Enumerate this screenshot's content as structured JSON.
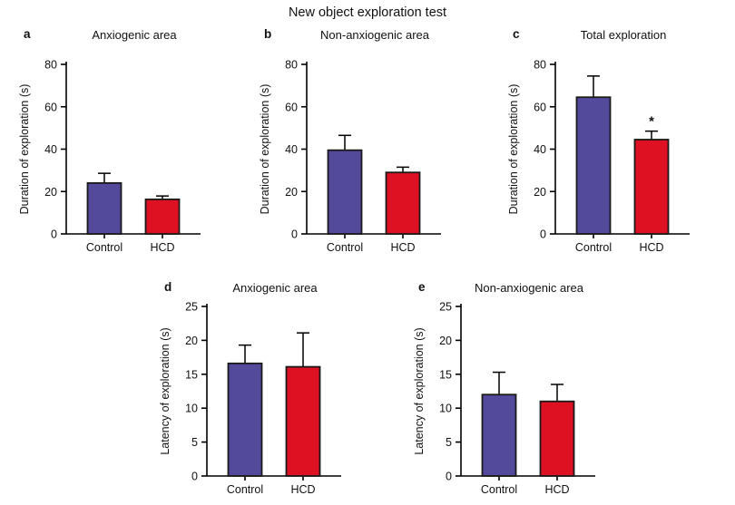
{
  "figure_title": "New object exploration test",
  "palette": {
    "control": "#544a9c",
    "hcd": "#de1123",
    "axis": "#000000",
    "text": "#111111",
    "bar_border": "#1a1a1a"
  },
  "chart_data": [
    {
      "type": "bar",
      "panel_label": "a",
      "title": "Anxiogenic area",
      "ylabel": "Duration of exploration (s)",
      "xlabel": "",
      "categories": [
        "Control",
        "HCD"
      ],
      "values": [
        24,
        16.3
      ],
      "sem": [
        4.6,
        1.6
      ],
      "bar_colors": [
        "#544a9c",
        "#de1123"
      ],
      "ylim": [
        0,
        80
      ],
      "ytick_step": 20,
      "significance": [
        null,
        null
      ],
      "grid": false,
      "legend": false
    },
    {
      "type": "bar",
      "panel_label": "b",
      "title": "Non-anxiogenic area",
      "ylabel": "Duration of exploration (s)",
      "xlabel": "",
      "categories": [
        "Control",
        "HCD"
      ],
      "values": [
        39.5,
        29
      ],
      "sem": [
        7,
        2.5
      ],
      "bar_colors": [
        "#544a9c",
        "#de1123"
      ],
      "ylim": [
        0,
        80
      ],
      "ytick_step": 20,
      "significance": [
        null,
        null
      ],
      "grid": false,
      "legend": false
    },
    {
      "type": "bar",
      "panel_label": "c",
      "title": "Total exploration",
      "ylabel": "Duration of exploration (s)",
      "xlabel": "",
      "categories": [
        "Control",
        "HCD"
      ],
      "values": [
        64.5,
        44.5
      ],
      "sem": [
        10,
        4
      ],
      "bar_colors": [
        "#544a9c",
        "#de1123"
      ],
      "ylim": [
        0,
        80
      ],
      "ytick_step": 20,
      "significance": [
        null,
        "*"
      ],
      "grid": false,
      "legend": false
    },
    {
      "type": "bar",
      "panel_label": "d",
      "title": "Anxiogenic area",
      "ylabel": "Latency of exploration (s)",
      "xlabel": "",
      "categories": [
        "Control",
        "HCD"
      ],
      "values": [
        16.6,
        16.1
      ],
      "sem": [
        2.7,
        5.0
      ],
      "bar_colors": [
        "#544a9c",
        "#de1123"
      ],
      "ylim": [
        0,
        25
      ],
      "ytick_step": 5,
      "significance": [
        null,
        null
      ],
      "grid": false,
      "legend": false
    },
    {
      "type": "bar",
      "panel_label": "e",
      "title": "Non-anxiogenic area",
      "ylabel": "Latency of exploration (s)",
      "xlabel": "",
      "categories": [
        "Control",
        "HCD"
      ],
      "values": [
        12,
        11
      ],
      "sem": [
        3.3,
        2.5
      ],
      "bar_colors": [
        "#544a9c",
        "#de1123"
      ],
      "ylim": [
        0,
        25
      ],
      "ytick_step": 5,
      "significance": [
        null,
        null
      ],
      "grid": false,
      "legend": false
    }
  ]
}
